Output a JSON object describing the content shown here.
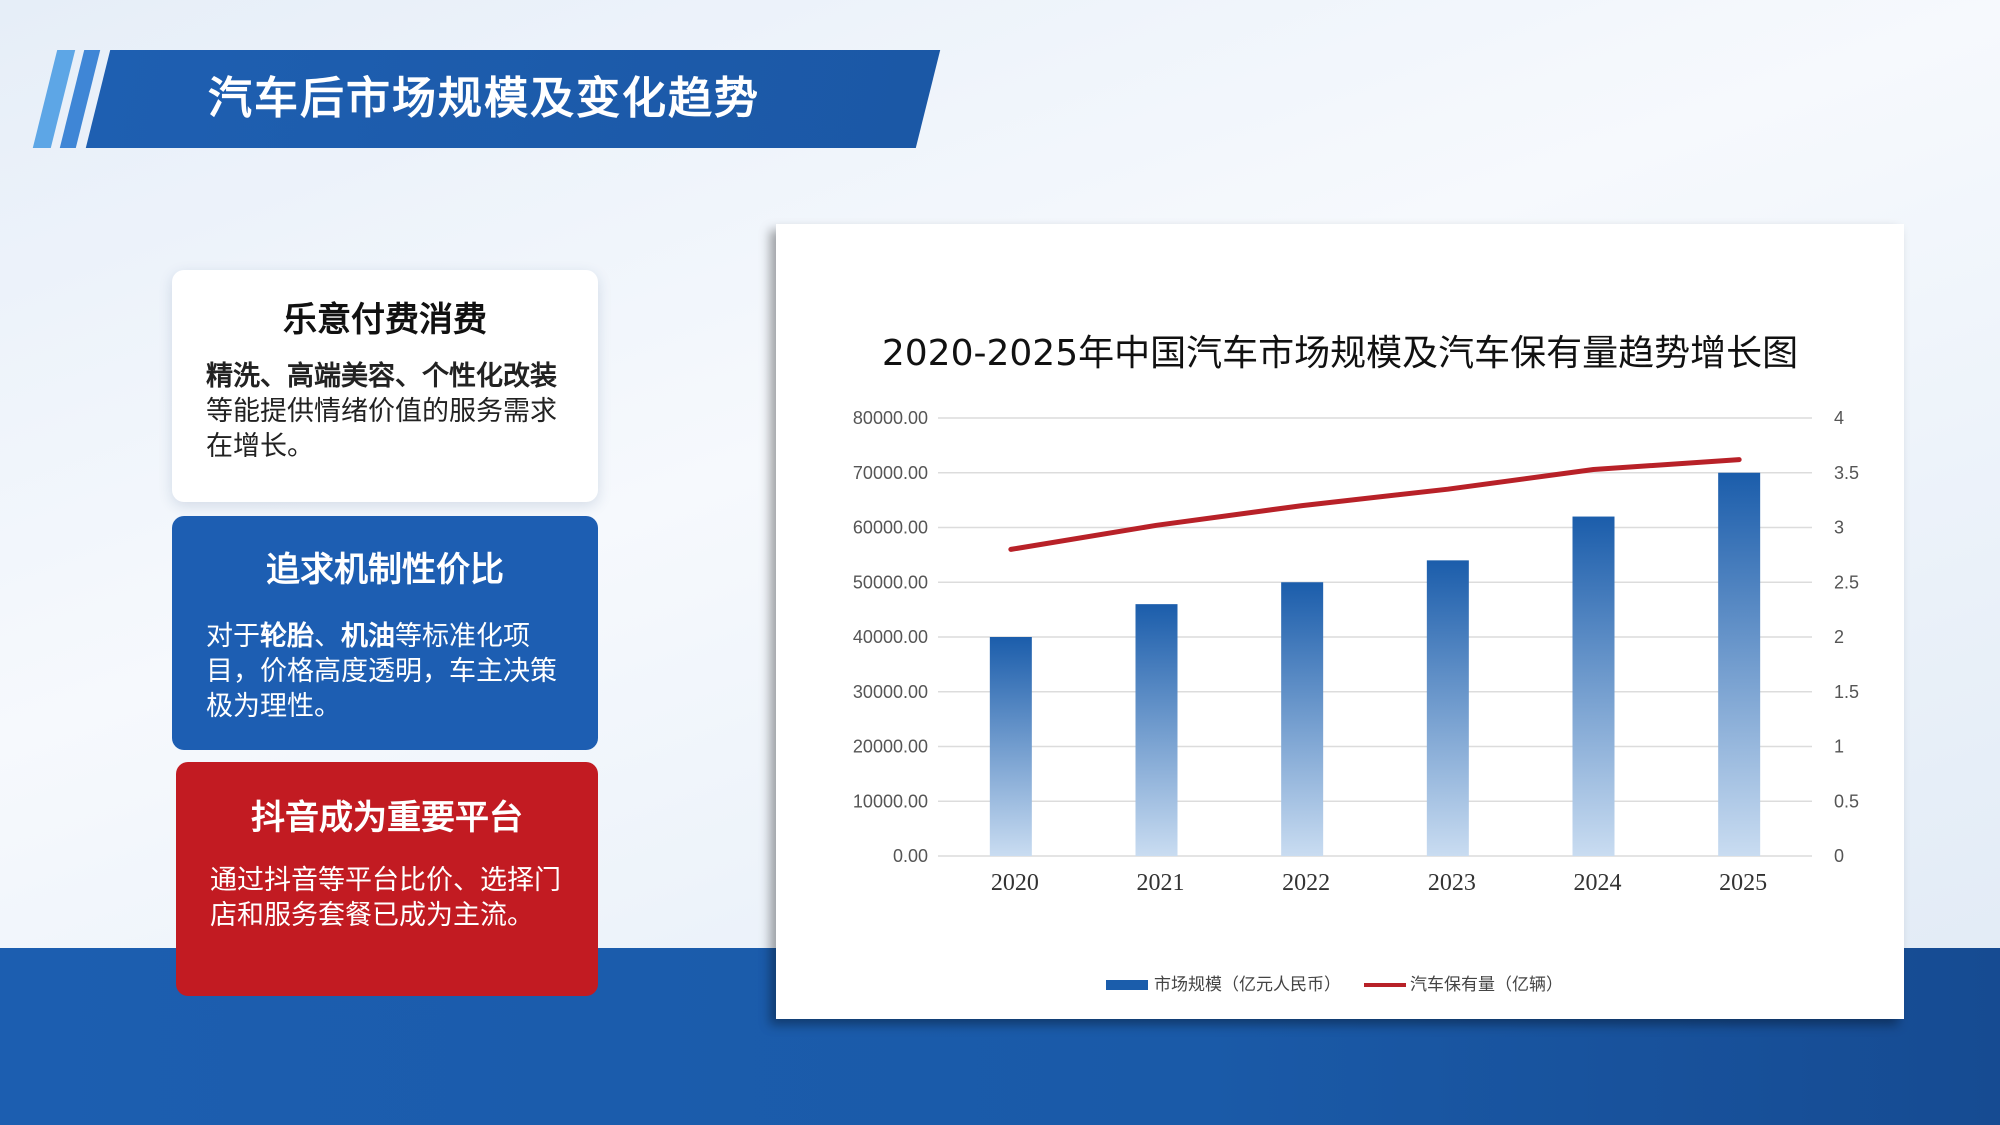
{
  "header": {
    "title": "汽车后市场规模及变化趋势"
  },
  "cards": [
    {
      "title": "乐意付费消费",
      "bold": "精洗、高端美容、个性化改装",
      "bold2": "",
      "text_before": "",
      "text_mid": "",
      "text": "等能提供情绪价值的服务需求在增长。"
    },
    {
      "title": "追求机制性价比",
      "text_before": "对于",
      "bold": "轮胎",
      "text_mid": "、",
      "bold2": "机油",
      "text": "等标准化项目，价格高度透明，车主决策极为理性。"
    },
    {
      "title": "抖音成为重要平台",
      "text": "通过抖音等平台比价、选择门店和服务套餐已成为主流。"
    }
  ],
  "colors": {
    "banner": "#1e5fb1",
    "card_blue": "#1d5eb2",
    "card_red": "#c21b22",
    "bar_top": "#1b5dab",
    "bar_bottom": "#c9dcf1",
    "line": "#b82128"
  },
  "chart_data": {
    "type": "bar",
    "title": "2020-2025年中国汽车市场规模及汽车保有量趋势增长图",
    "categories": [
      "2020",
      "2021",
      "2022",
      "2023",
      "2024",
      "2025"
    ],
    "series": [
      {
        "name": "市场规模（亿元人民币）",
        "type": "bar",
        "axis": "left",
        "values": [
          40000,
          46000,
          50000,
          54000,
          62000,
          70000
        ]
      },
      {
        "name": "汽车保有量（亿辆）",
        "type": "line",
        "axis": "right",
        "values": [
          2.8,
          3.02,
          3.2,
          3.35,
          3.53,
          3.62
        ]
      }
    ],
    "y_left": {
      "min": 0,
      "max": 80000,
      "ticks": [
        "0.00",
        "10000.00",
        "20000.00",
        "30000.00",
        "40000.00",
        "50000.00",
        "60000.00",
        "70000.00",
        "80000.00"
      ]
    },
    "y_right": {
      "min": 0,
      "max": 4,
      "ticks": [
        "0",
        "0.5",
        "1",
        "1.5",
        "2",
        "2.5",
        "3",
        "3.5",
        "4"
      ]
    },
    "grid": true,
    "legend": "bottom"
  }
}
